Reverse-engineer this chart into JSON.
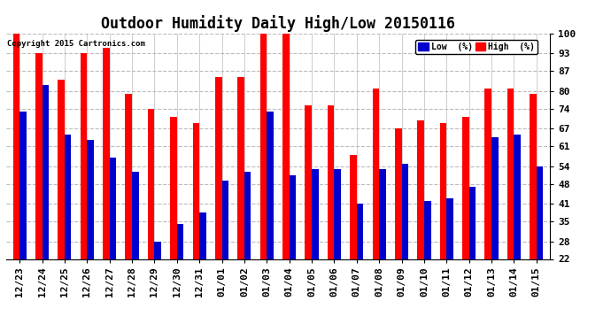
{
  "title": "Outdoor Humidity Daily High/Low 20150116",
  "copyright": "Copyright 2015 Cartronics.com",
  "categories": [
    "12/23",
    "12/24",
    "12/25",
    "12/26",
    "12/27",
    "12/28",
    "12/29",
    "12/30",
    "12/31",
    "01/01",
    "01/02",
    "01/03",
    "01/04",
    "01/05",
    "01/06",
    "01/07",
    "01/08",
    "01/09",
    "01/10",
    "01/11",
    "01/12",
    "01/13",
    "01/14",
    "01/15"
  ],
  "high_values": [
    100,
    93,
    84,
    93,
    95,
    79,
    74,
    71,
    69,
    85,
    85,
    100,
    100,
    75,
    75,
    58,
    81,
    67,
    70,
    69,
    71,
    81,
    81,
    79
  ],
  "low_values": [
    73,
    82,
    65,
    63,
    57,
    52,
    28,
    34,
    38,
    49,
    52,
    73,
    51,
    53,
    53,
    41,
    53,
    55,
    42,
    43,
    47,
    64,
    65,
    54
  ],
  "high_color": "#ff0000",
  "low_color": "#0000cc",
  "bg_color": "#ffffff",
  "grid_color": "#bbbbbb",
  "ylim_min": 22,
  "ylim_max": 100,
  "yticks": [
    22,
    28,
    35,
    41,
    48,
    54,
    61,
    67,
    74,
    80,
    87,
    93,
    100
  ],
  "bar_width": 0.3,
  "title_fontsize": 12,
  "tick_fontsize": 8,
  "legend_low_label": "Low  (%)",
  "legend_high_label": "High  (%)"
}
